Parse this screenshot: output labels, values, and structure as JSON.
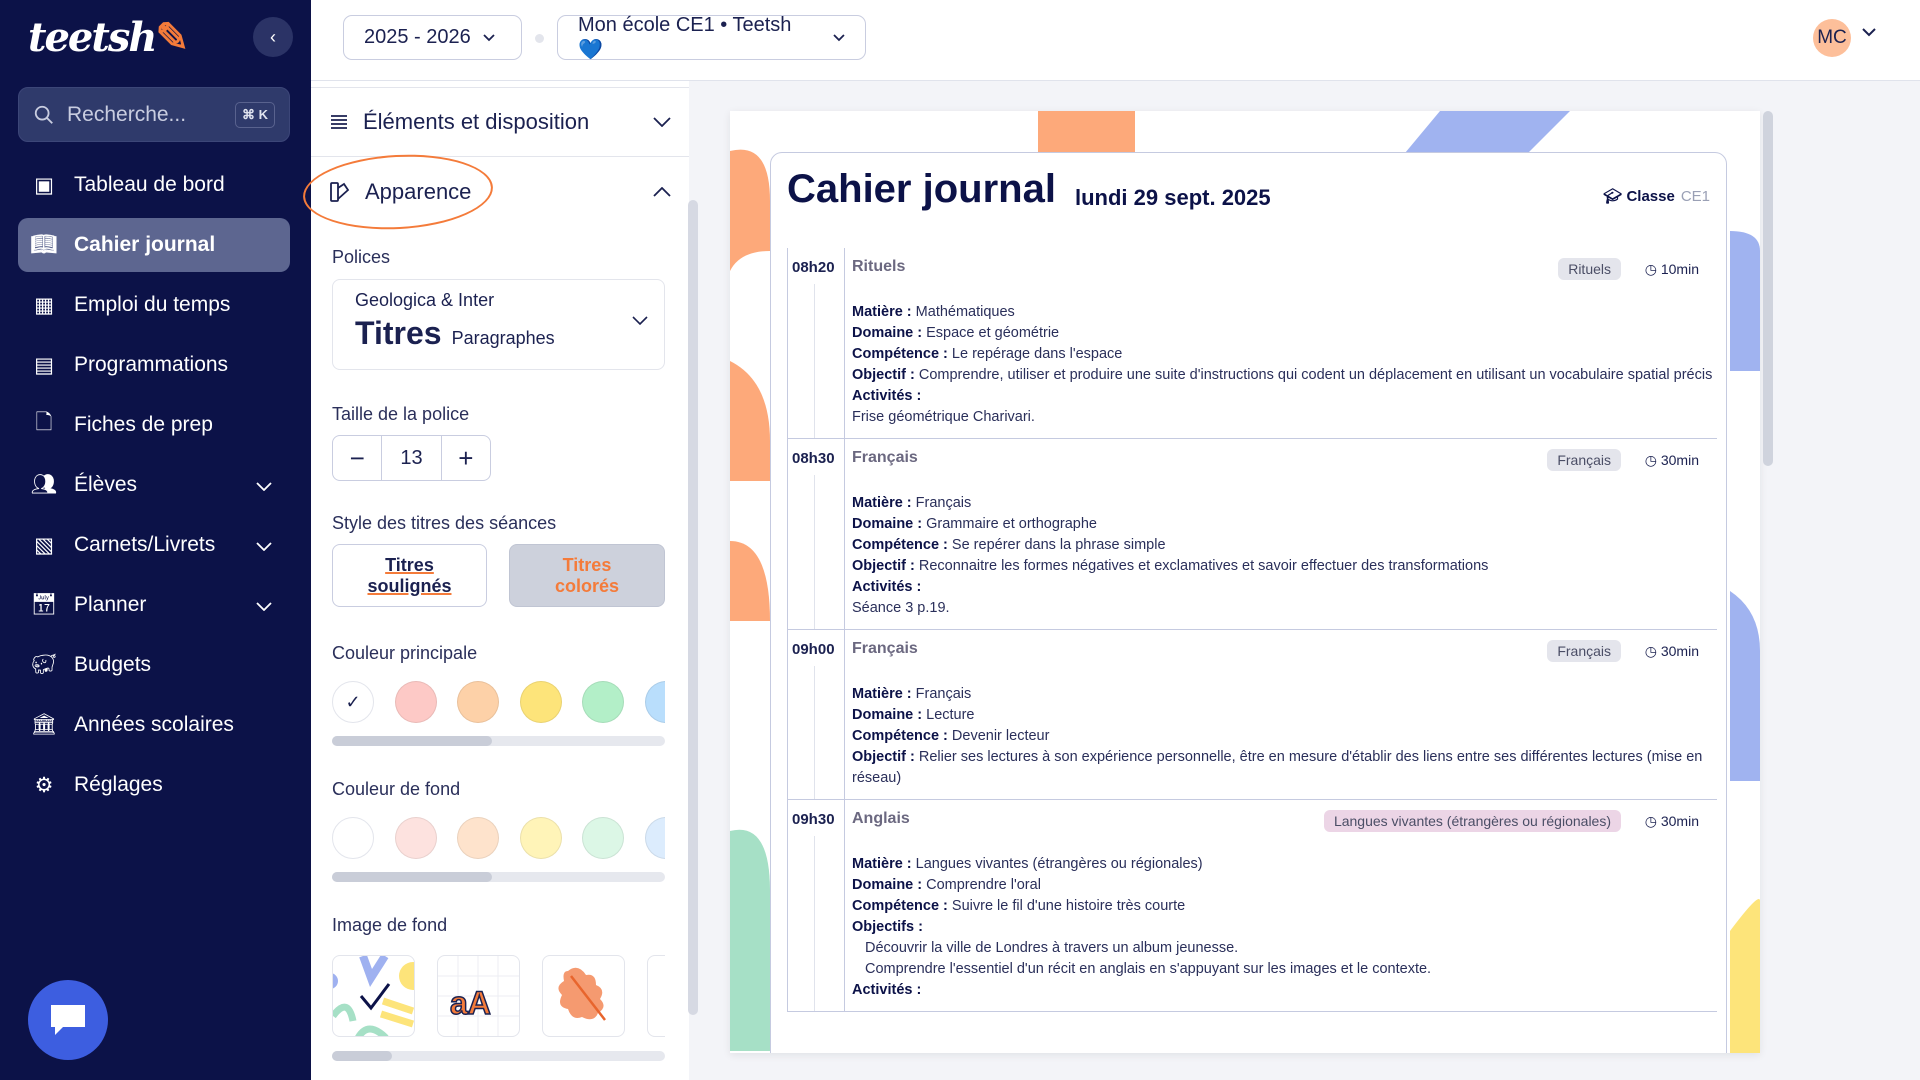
{
  "sidebar": {
    "logo": "teetsh",
    "search_placeholder": "Recherche...",
    "search_shortcut": "⌘ K",
    "items": [
      {
        "label": "Tableau de bord",
        "icon": "dashboard-icon"
      },
      {
        "label": "Cahier journal",
        "icon": "book-open-icon",
        "active": true
      },
      {
        "label": "Emploi du temps",
        "icon": "calendar-icon"
      },
      {
        "label": "Programmations",
        "icon": "presentation-icon"
      },
      {
        "label": "Fiches de prep",
        "icon": "file-icon"
      },
      {
        "label": "Élèves",
        "icon": "users-icon",
        "expandable": true
      },
      {
        "label": "Carnets/Livrets",
        "icon": "notebook-icon",
        "expandable": true
      },
      {
        "label": "Planner",
        "icon": "calendar-day-icon",
        "expandable": true
      },
      {
        "label": "Budgets",
        "icon": "piggy-bank-icon"
      },
      {
        "label": "Années scolaires",
        "icon": "school-building-icon"
      },
      {
        "label": "Réglages",
        "icon": "gear-icon"
      }
    ]
  },
  "topbar": {
    "year": "2025 - 2026",
    "school": "Mon école CE1 • Teetsh 💙",
    "avatar_initials": "MC"
  },
  "panel": {
    "section_elements": "Éléments et disposition",
    "section_appearance": "Apparence",
    "fonts_label": "Polices",
    "font_name": "Geologica & Inter",
    "font_titles": "Titres",
    "font_paragraphs": "Paragraphes",
    "font_size_label": "Taille de la police",
    "font_size": "13",
    "minus": "−",
    "plus": "+",
    "title_style_label": "Style des titres des séances",
    "style_underlined_1": "Titres",
    "style_underlined_2": "soulignés",
    "style_colored_1": "Titres",
    "style_colored_2": "colorés",
    "main_color_label": "Couleur principale",
    "main_colors": [
      "#ffffff",
      "#fdc9c6",
      "#fdd1a8",
      "#fde47a",
      "#b3efc8",
      "#b9defc"
    ],
    "main_color_selected": 0,
    "main_color_scroll_percent": 48,
    "bg_color_label": "Couleur de fond",
    "bg_colors": [
      "#ffffff",
      "#fde2df",
      "#fee3cc",
      "#fff4b8",
      "#dcf7e6",
      "#dcecfd"
    ],
    "bg_color_scroll_percent": 48,
    "bg_image_label": "Image de fond",
    "bg_image_selected": 0,
    "bg_image_scroll_percent": 18,
    "bg_image_text": "aA"
  },
  "journal": {
    "title": "Cahier journal",
    "date": "lundi 29 sept. 2025",
    "class_label": "Classe",
    "class_value": "CE1",
    "sessions": [
      {
        "time": "08h20",
        "title": "Rituels",
        "tag": "Rituels",
        "tag_color": "#e4e5ec",
        "duration": "10min",
        "lines": [
          {
            "k": "Matière :",
            "v": "Mathématiques"
          },
          {
            "k": "Domaine :",
            "v": "Espace et géométrie"
          },
          {
            "k": "Compétence :",
            "v": "Le repérage dans l'espace"
          },
          {
            "k": "Objectif :",
            "v": "Comprendre, utiliser et produire une suite d'instructions qui codent un déplacement en utilisant un vocabulaire spatial précis"
          },
          {
            "k": "Activités :",
            "v": ""
          },
          {
            "k": "",
            "v": "Frise géométrique Charivari."
          }
        ]
      },
      {
        "time": "08h30",
        "title": "Français",
        "tag": "Français",
        "tag_color": "#e4e5ec",
        "duration": "30min",
        "lines": [
          {
            "k": "Matière :",
            "v": "Français"
          },
          {
            "k": "Domaine :",
            "v": "Grammaire et orthographe"
          },
          {
            "k": "Compétence :",
            "v": "Se repérer dans la phrase simple"
          },
          {
            "k": "Objectif :",
            "v": "Reconnaitre les formes négatives et exclamatives et savoir effectuer des transformations"
          },
          {
            "k": "Activités :",
            "v": ""
          },
          {
            "k": "",
            "v": "Séance 3 p.19."
          }
        ]
      },
      {
        "time": "09h00",
        "title": "Français",
        "tag": "Français",
        "tag_color": "#e4e5ec",
        "duration": "30min",
        "lines": [
          {
            "k": "Matière :",
            "v": "Français"
          },
          {
            "k": "Domaine :",
            "v": "Lecture"
          },
          {
            "k": "Compétence :",
            "v": "Devenir lecteur"
          },
          {
            "k": "Objectif :",
            "v": "Relier ses lectures à son expérience personnelle, être en mesure d'établir des liens entre ses différentes lectures (mise en réseau)"
          }
        ]
      },
      {
        "time": "09h30",
        "title": "Anglais",
        "tag": "Langues vivantes (étrangères ou régionales)",
        "tag_color": "#ecd5e6",
        "duration": "30min",
        "lines": [
          {
            "k": "Matière :",
            "v": "Langues vivantes (étrangères ou régionales)"
          },
          {
            "k": "Domaine :",
            "v": "Comprendre l'oral"
          },
          {
            "k": "Compétence :",
            "v": "Suivre le fil d'une histoire très courte"
          },
          {
            "k": "Objectifs :",
            "v": ""
          },
          {
            "k": "",
            "v": "Découvrir la ville de Londres à travers un album jeunesse.",
            "indent": true
          },
          {
            "k": "",
            "v": "Comprendre l'essentiel d'un récit en anglais en s'appuyant sur les images et le contexte.",
            "indent": true
          },
          {
            "k": "Activités :",
            "v": ""
          }
        ]
      }
    ]
  }
}
